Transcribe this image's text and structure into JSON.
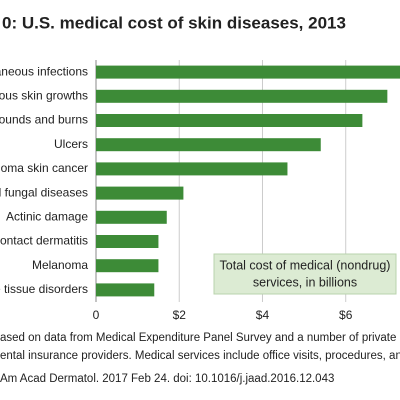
{
  "chart_data": {
    "type": "bar",
    "orientation": "horizontal",
    "title": "0: U.S. medical cost of skin diseases, 2013",
    "categories": [
      "taneous infections",
      "erous skin growths",
      "Wounds and burns",
      "Ulcers",
      "anoma skin cancer",
      "nd fungal diseases",
      "Actinic damage",
      "Contact dermatitis",
      "Melanoma",
      "ve tissue disorders"
    ],
    "values": [
      7.4,
      7.0,
      6.4,
      5.4,
      4.6,
      2.1,
      1.7,
      1.5,
      1.5,
      1.4
    ],
    "color": "#3d8b37",
    "xlim": [
      0,
      7.4
    ],
    "xticks": [
      0,
      {
        "value": 2,
        "label": "$2"
      },
      {
        "value": 4,
        "label": "$4"
      },
      {
        "value": 6,
        "label": "$6"
      }
    ],
    "grid": true,
    "annotation": [
      "Total cost of medical (nondrug)",
      "services, in billions"
    ],
    "notes": [
      "ased on data from Medical Expenditure Panel Survey and a number of private and",
      "ental insurance providers. Medical services include office visits, procedures, an",
      "Am Acad Dermatol. 2017 Feb 24. doi: 10.1016/j.jaad.2016.12.043"
    ]
  }
}
